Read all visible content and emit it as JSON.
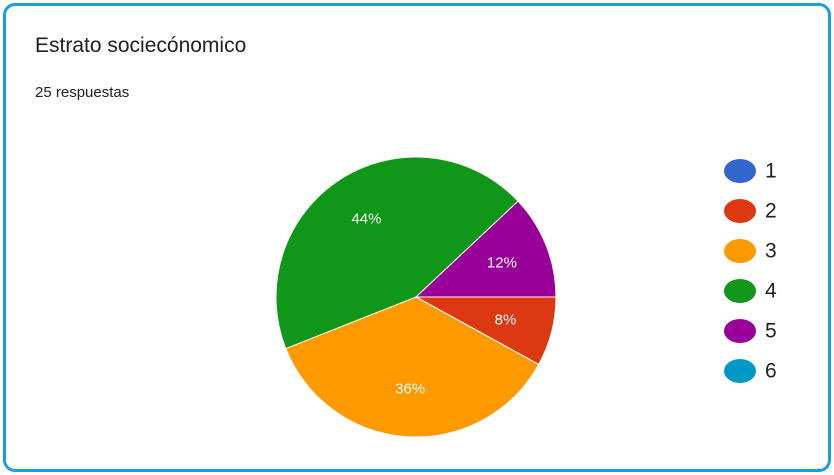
{
  "card": {
    "title": "Estrato sociecónomico",
    "subtitle": "25 respuestas",
    "border_color": "#1a9ee0"
  },
  "chart_data": {
    "type": "pie",
    "title": "Estrato sociecónomico",
    "legend_position": "right",
    "slices": [
      {
        "label": "1",
        "value": 0,
        "display": "",
        "color": "#3366cc"
      },
      {
        "label": "2",
        "value": 8,
        "display": "8%",
        "color": "#dc3912"
      },
      {
        "label": "3",
        "value": 36,
        "display": "36%",
        "color": "#ff9900"
      },
      {
        "label": "4",
        "value": 44,
        "display": "44%",
        "color": "#109618"
      },
      {
        "label": "5",
        "value": 12,
        "display": "12%",
        "color": "#990099"
      },
      {
        "label": "6",
        "value": 0,
        "display": "",
        "color": "#0099c6"
      }
    ]
  }
}
